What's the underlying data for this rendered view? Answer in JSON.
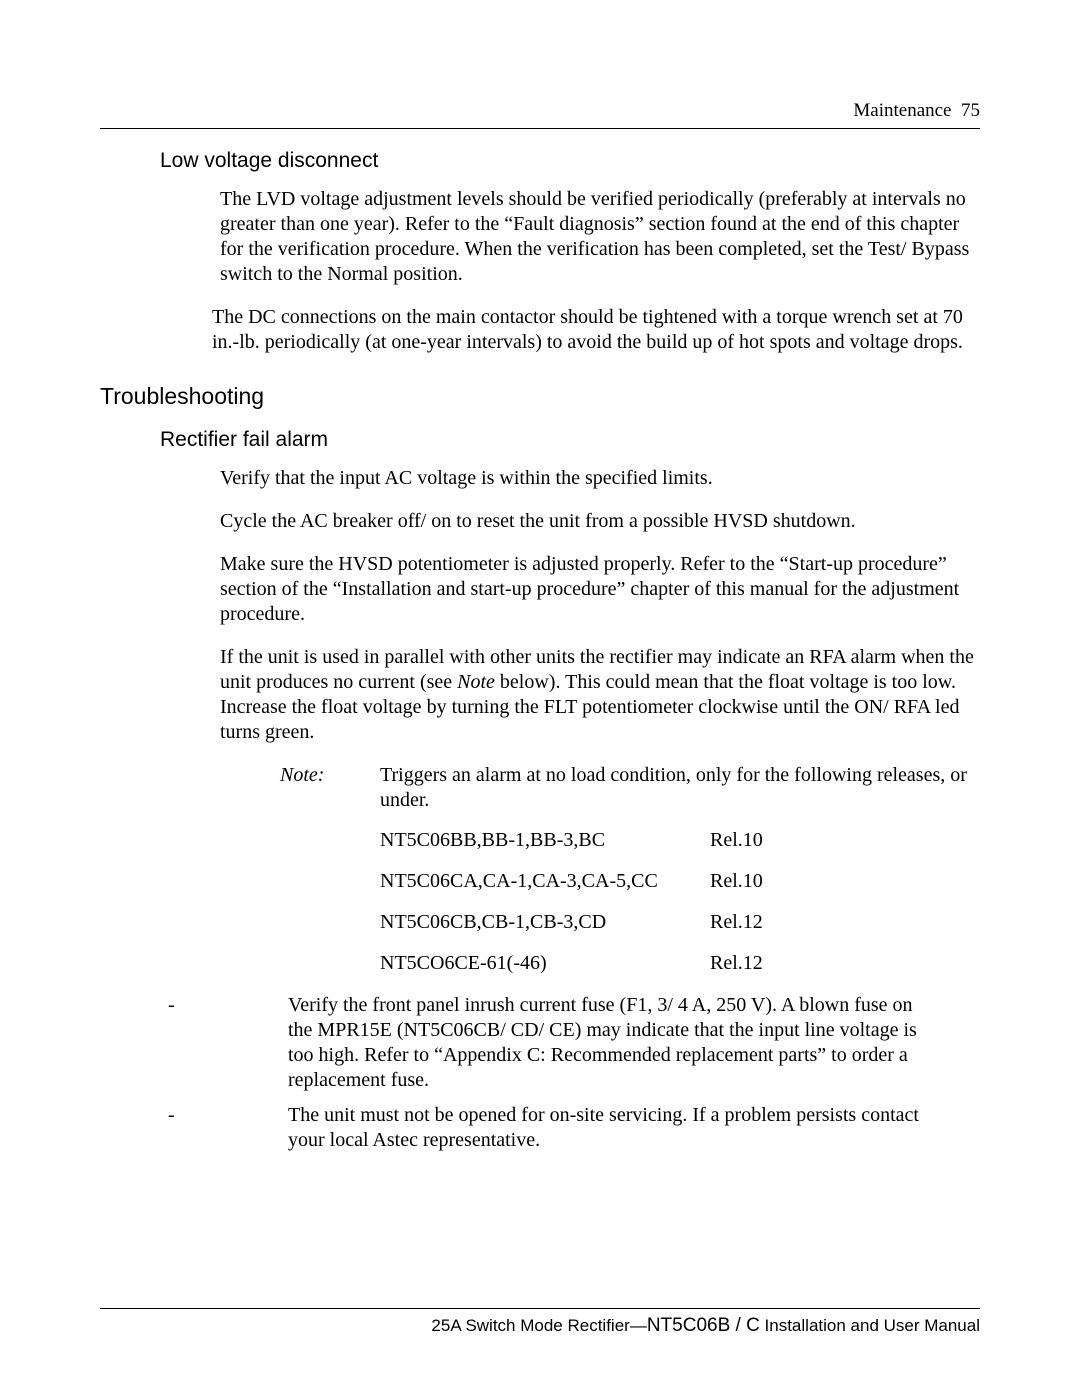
{
  "header": {
    "section": "Maintenance",
    "page_no": "75"
  },
  "headings": {
    "lvd": "Low voltage disconnect",
    "troubleshooting": "Troubleshooting",
    "rfa": "Rectifier fail alarm"
  },
  "paragraphs": {
    "lvd_p1": "The LVD voltage adjustment levels should be verified periodically (preferably at intervals no greater than one year). Refer to the “Fault diagnosis” section found at the end of this chapter for the verification procedure. When the verification has been completed, set the Test/ Bypass switch to the Normal position.",
    "lvd_p2": "The DC connections on the main contactor should be tightened with a torque wrench set at 70 in.-lb. periodically (at one-year intervals) to avoid the build up of hot spots and voltage drops.",
    "rfa_p1": "Verify that the input AC voltage is within the specified limits.",
    "rfa_p2": "Cycle the AC breaker off/ on to reset the unit from a possible HVSD shutdown.",
    "rfa_p3": "Make sure the HVSD potentiometer is adjusted properly. Refer to the “Start-up procedure” section of the “Installation and start-up procedure” chapter of this manual for the adjustment procedure.",
    "rfa_p4_a": "If the unit is used in parallel with other units the rectifier may indicate an RFA alarm when the unit produces no current (see ",
    "rfa_p4_note": "Note",
    "rfa_p4_b": " below). This could mean that the float voltage is too low. Increase the float voltage by turning the FLT potentiometer clockwise until the ON/ RFA led turns green."
  },
  "note": {
    "label": "Note:",
    "text": "Triggers an alarm at no load condition, only for the following releases, or under.",
    "releases": [
      {
        "model": "NT5C06BB,BB-1,BB-3,BC",
        "rel": "Rel.10"
      },
      {
        "model": "NT5C06CA,CA-1,CA-3,CA-5,CC",
        "rel": "Rel.10"
      },
      {
        "model": "NT5C06CB,CB-1,CB-3,CD",
        "rel": "Rel.12"
      },
      {
        "model": "NT5CO6CE-61(-46)",
        "rel": "Rel.12"
      }
    ]
  },
  "dashes": [
    "Verify the front panel inrush current fuse (F1, 3/ 4 A, 250 V). A blown fuse on the MPR15E (NT5C06CB/ CD/ CE) may indicate that the input line voltage is too high. Refer to “Appendix C: Recommended replacement parts” to order a replacement fuse.",
    "The unit must not be opened for on-site servicing. If a problem persists contact your local Astec representative."
  ],
  "footer": {
    "prefix": "25A Switch Mode Rectifier—",
    "code": "NT5C06B / C",
    "suffix": "   Installation and User Manual"
  }
}
